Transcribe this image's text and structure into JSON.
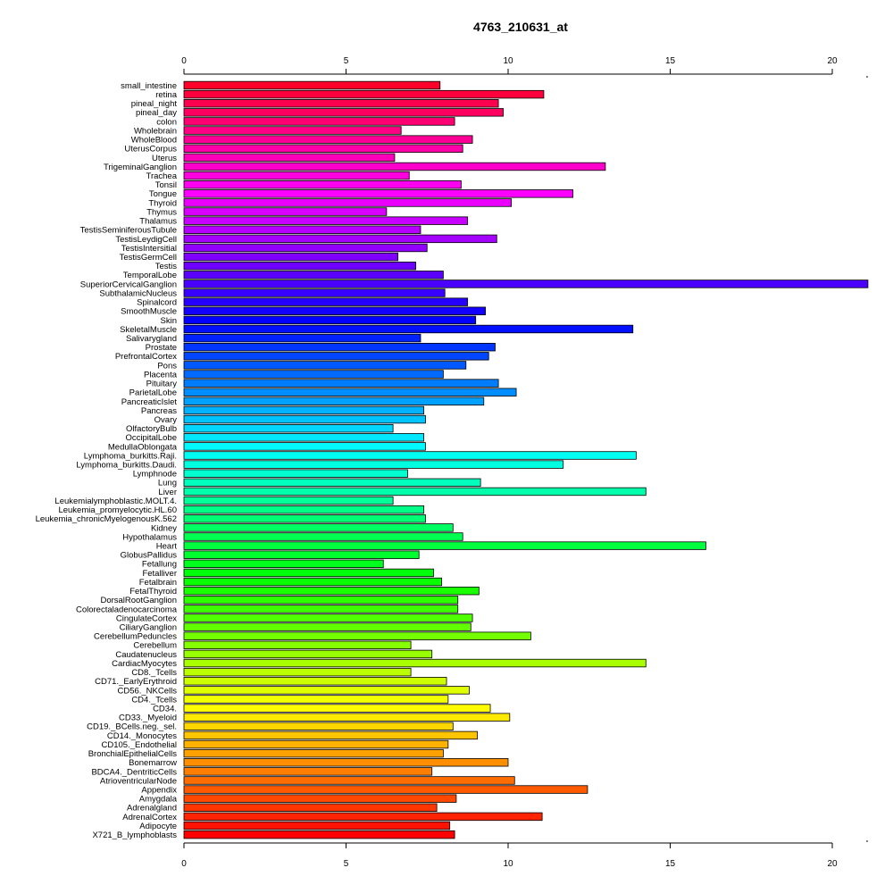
{
  "chart_data": {
    "type": "bar",
    "orientation": "horizontal",
    "title": "4763_210631_at",
    "xlabel": "",
    "ylabel": "",
    "xlim": [
      0,
      21.1
    ],
    "ticks": [
      0,
      5,
      10,
      15,
      20
    ],
    "tick_labels": [
      "0",
      "5",
      "10",
      "15",
      "20"
    ],
    "axis_positions": [
      "top",
      "bottom"
    ],
    "grid": false,
    "legend": "none",
    "color_scheme": "rainbow",
    "bar_border": "#000000",
    "categories": [
      "small_intestine",
      "retina",
      "pineal_night",
      "pineal_day",
      "colon",
      "Wholebrain",
      "WholeBlood",
      "UterusCorpus",
      "Uterus",
      "TrigeminalGanglion",
      "Trachea",
      "Tonsil",
      "Tongue",
      "Thyroid",
      "Thymus",
      "Thalamus",
      "TestisSeminiferousTubule",
      "TestisLeydigCell",
      "TestisIntersitial",
      "TestisGermCell",
      "Testis",
      "TemporalLobe",
      "SuperiorCervicalGanglion",
      "SubthalamicNucleus",
      "Spinalcord",
      "SmoothMuscle",
      "Skin",
      "SkeletalMuscle",
      "Salivarygland",
      "Prostate",
      "PrefrontalCortex",
      "Pons",
      "Placenta",
      "Pituitary",
      "ParietalLobe",
      "PancreaticIslet",
      "Pancreas",
      "Ovary",
      "OlfactoryBulb",
      "OccipitalLobe",
      "MedullaOblongata",
      "Lymphoma_burkitts.Raji.",
      "Lymphoma_burkitts.Daudi.",
      "Lymphnode",
      "Lung",
      "Liver",
      "Leukemialymphoblastic.MOLT.4.",
      "Leukemia_promyelocytic.HL.60",
      "Leukemia_chronicMyelogenousK.562",
      "Kidney",
      "Hypothalamus",
      "Heart",
      "GlobusPallidus",
      "Fetallung",
      "Fetalliver",
      "Fetalbrain",
      "FetalThyroid",
      "DorsalRootGanglion",
      "Colorectaladenocarcinoma",
      "CingulateCortex",
      "CiliaryGanglion",
      "CerebellumPeduncles",
      "Cerebellum",
      "Caudatenucleus",
      "CardiacMyocytes",
      "CD8._Tcells",
      "CD71._EarlyErythroid",
      "CD56._NKCells",
      "CD4._Tcells",
      "CD34.",
      "CD33._Myeloid",
      "CD19._BCells.neg._sel.",
      "CD14._Monocytes",
      "CD105._Endothelial",
      "BronchialEpithelialCells",
      "Bonemarrow",
      "BDCA4._DentriticCells",
      "AtrioventricularNode",
      "Appendix",
      "Amygdala",
      "Adrenalgland",
      "AdrenalCortex",
      "Adipocyte",
      "X721_B_lymphoblasts"
    ],
    "values": [
      7.9,
      11.1,
      9.7,
      9.85,
      8.35,
      6.7,
      8.9,
      8.6,
      6.5,
      13.0,
      6.95,
      8.55,
      12.0,
      10.1,
      6.25,
      8.75,
      7.3,
      9.65,
      7.5,
      6.6,
      7.15,
      8.0,
      21.1,
      8.05,
      8.75,
      9.3,
      9.0,
      13.85,
      7.3,
      9.6,
      9.4,
      8.7,
      8.0,
      9.7,
      10.25,
      9.25,
      7.4,
      7.45,
      6.45,
      7.4,
      7.45,
      13.95,
      11.7,
      6.9,
      9.15,
      14.25,
      6.45,
      7.4,
      7.45,
      8.3,
      8.6,
      16.1,
      7.25,
      6.15,
      7.7,
      7.95,
      9.1,
      8.45,
      8.45,
      8.9,
      8.85,
      10.7,
      7.0,
      7.65,
      14.25,
      7.0,
      8.1,
      8.8,
      8.15,
      9.45,
      10.05,
      8.3,
      9.05,
      8.15,
      8.0,
      10.0,
      7.65,
      10.2,
      12.45,
      8.4,
      7.8,
      11.05,
      8.2,
      8.35
    ]
  }
}
